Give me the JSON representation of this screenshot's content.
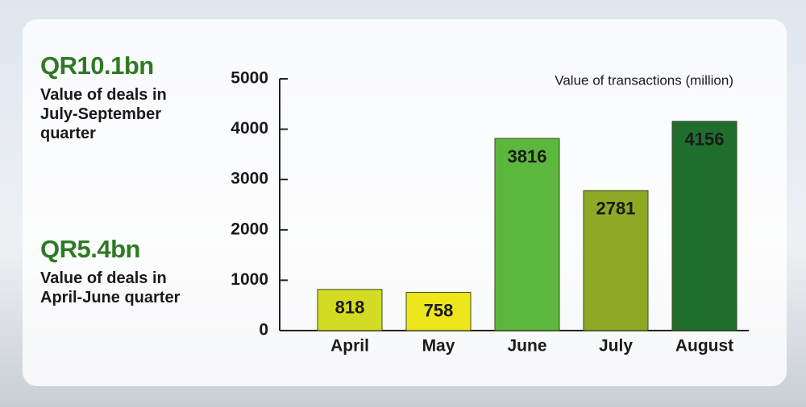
{
  "chart_data": {
    "type": "bar",
    "title": "Value of transactions (million)",
    "categories": [
      "April",
      "May",
      "June",
      "July",
      "August"
    ],
    "values": [
      818,
      758,
      3816,
      2781,
      4156
    ],
    "colors": [
      "#d3dc22",
      "#ede61c",
      "#5cb83c",
      "#8fa925",
      "#1f6e2e"
    ],
    "ylim": [
      0,
      5000
    ],
    "yticks": [
      0,
      1000,
      2000,
      3000,
      4000,
      5000
    ],
    "annotations": [
      {
        "headline": "QR10.1bn",
        "text": "Value of deals in July-September quarter"
      },
      {
        "headline": "QR5.4bn",
        "text": "Value of deals in April-June quarter"
      }
    ]
  }
}
